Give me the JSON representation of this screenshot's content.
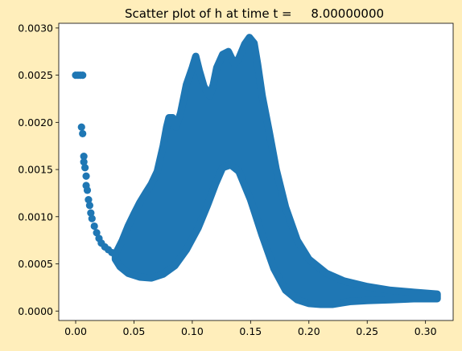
{
  "colors": {
    "figure_background": "#FFEEBB",
    "axes_background": "#FFFFFF",
    "marker": "#1F77B4"
  },
  "chart_data": {
    "type": "scatter",
    "title": "Scatter plot of h at time t =     8.00000000",
    "xlabel": "",
    "ylabel": "",
    "xlim": [
      -0.0145,
      0.3237
    ],
    "ylim": [
      -0.0001,
      0.00305
    ],
    "xticks": [
      {
        "value": 0.0,
        "label": "0.00"
      },
      {
        "value": 0.05,
        "label": "0.05"
      },
      {
        "value": 0.1,
        "label": "0.10"
      },
      {
        "value": 0.15,
        "label": "0.15"
      },
      {
        "value": 0.2,
        "label": "0.20"
      },
      {
        "value": 0.25,
        "label": "0.25"
      },
      {
        "value": 0.3,
        "label": "0.30"
      }
    ],
    "yticks": [
      {
        "value": 0.0,
        "label": "0.0000"
      },
      {
        "value": 0.0005,
        "label": "0.0005"
      },
      {
        "value": 0.001,
        "label": "0.0010"
      },
      {
        "value": 0.0015,
        "label": "0.0015"
      },
      {
        "value": 0.002,
        "label": "0.0020"
      },
      {
        "value": 0.0025,
        "label": "0.0025"
      },
      {
        "value": 0.003,
        "label": "0.0030"
      }
    ],
    "grid": false,
    "legend": "none",
    "points_isolated": [
      {
        "x": 0.0,
        "y": 0.0025
      },
      {
        "x": 0.002,
        "y": 0.0025
      },
      {
        "x": 0.004,
        "y": 0.0025
      },
      {
        "x": 0.006,
        "y": 0.0025
      },
      {
        "x": 0.005,
        "y": 0.00195
      },
      {
        "x": 0.006,
        "y": 0.00188
      },
      {
        "x": 0.007,
        "y": 0.00164
      },
      {
        "x": 0.007,
        "y": 0.00158
      },
      {
        "x": 0.008,
        "y": 0.00152
      },
      {
        "x": 0.009,
        "y": 0.00143
      },
      {
        "x": 0.009,
        "y": 0.00133
      },
      {
        "x": 0.01,
        "y": 0.00128
      },
      {
        "x": 0.011,
        "y": 0.00118
      },
      {
        "x": 0.012,
        "y": 0.00112
      },
      {
        "x": 0.013,
        "y": 0.00104
      },
      {
        "x": 0.014,
        "y": 0.00098
      },
      {
        "x": 0.016,
        "y": 0.0009
      },
      {
        "x": 0.018,
        "y": 0.00083
      },
      {
        "x": 0.02,
        "y": 0.00077
      },
      {
        "x": 0.022,
        "y": 0.00072
      },
      {
        "x": 0.025,
        "y": 0.00068
      },
      {
        "x": 0.028,
        "y": 0.00065
      },
      {
        "x": 0.031,
        "y": 0.00062
      },
      {
        "x": 0.034,
        "y": 0.0006
      }
    ],
    "band_upper": [
      {
        "x": 0.034,
        "y": 0.0006
      },
      {
        "x": 0.04,
        "y": 0.00075
      },
      {
        "x": 0.045,
        "y": 0.0009
      },
      {
        "x": 0.05,
        "y": 0.00103
      },
      {
        "x": 0.055,
        "y": 0.00115
      },
      {
        "x": 0.06,
        "y": 0.00125
      },
      {
        "x": 0.065,
        "y": 0.00135
      },
      {
        "x": 0.07,
        "y": 0.00148
      },
      {
        "x": 0.075,
        "y": 0.00175
      },
      {
        "x": 0.078,
        "y": 0.00195
      },
      {
        "x": 0.08,
        "y": 0.00205
      },
      {
        "x": 0.083,
        "y": 0.00205
      },
      {
        "x": 0.086,
        "y": 0.00195
      },
      {
        "x": 0.09,
        "y": 0.0021
      },
      {
        "x": 0.095,
        "y": 0.0024
      },
      {
        "x": 0.1,
        "y": 0.00258
      },
      {
        "x": 0.103,
        "y": 0.0027
      },
      {
        "x": 0.106,
        "y": 0.00255
      },
      {
        "x": 0.11,
        "y": 0.00238
      },
      {
        "x": 0.115,
        "y": 0.00228
      },
      {
        "x": 0.118,
        "y": 0.0024
      },
      {
        "x": 0.121,
        "y": 0.00258
      },
      {
        "x": 0.126,
        "y": 0.00272
      },
      {
        "x": 0.131,
        "y": 0.00275
      },
      {
        "x": 0.136,
        "y": 0.00262
      },
      {
        "x": 0.14,
        "y": 0.00268
      },
      {
        "x": 0.145,
        "y": 0.00283
      },
      {
        "x": 0.149,
        "y": 0.0029
      },
      {
        "x": 0.153,
        "y": 0.00284
      },
      {
        "x": 0.156,
        "y": 0.00262
      },
      {
        "x": 0.16,
        "y": 0.00228
      },
      {
        "x": 0.166,
        "y": 0.0019
      },
      {
        "x": 0.172,
        "y": 0.0015
      },
      {
        "x": 0.18,
        "y": 0.0011
      },
      {
        "x": 0.19,
        "y": 0.00075
      },
      {
        "x": 0.2,
        "y": 0.00055
      },
      {
        "x": 0.215,
        "y": 0.0004
      },
      {
        "x": 0.23,
        "y": 0.00032
      },
      {
        "x": 0.25,
        "y": 0.00026
      },
      {
        "x": 0.27,
        "y": 0.00022
      },
      {
        "x": 0.29,
        "y": 0.0002
      },
      {
        "x": 0.31,
        "y": 0.00018
      }
    ],
    "band_lower": [
      {
        "x": 0.31,
        "y": 0.00013
      },
      {
        "x": 0.29,
        "y": 0.00013
      },
      {
        "x": 0.27,
        "y": 0.00012
      },
      {
        "x": 0.25,
        "y": 0.00011
      },
      {
        "x": 0.235,
        "y": 0.0001
      },
      {
        "x": 0.22,
        "y": 7e-05
      },
      {
        "x": 0.21,
        "y": 7e-05
      },
      {
        "x": 0.2,
        "y": 8e-05
      },
      {
        "x": 0.19,
        "y": 0.00012
      },
      {
        "x": 0.18,
        "y": 0.00022
      },
      {
        "x": 0.17,
        "y": 0.00045
      },
      {
        "x": 0.16,
        "y": 0.0008
      },
      {
        "x": 0.15,
        "y": 0.00118
      },
      {
        "x": 0.14,
        "y": 0.00148
      },
      {
        "x": 0.133,
        "y": 0.00155
      },
      {
        "x": 0.126,
        "y": 0.00152
      },
      {
        "x": 0.12,
        "y": 0.00135
      },
      {
        "x": 0.113,
        "y": 0.00112
      },
      {
        "x": 0.105,
        "y": 0.00088
      },
      {
        "x": 0.095,
        "y": 0.00065
      },
      {
        "x": 0.085,
        "y": 0.00048
      },
      {
        "x": 0.075,
        "y": 0.00039
      },
      {
        "x": 0.065,
        "y": 0.00035
      },
      {
        "x": 0.055,
        "y": 0.00036
      },
      {
        "x": 0.045,
        "y": 0.0004
      },
      {
        "x": 0.038,
        "y": 0.00047
      },
      {
        "x": 0.034,
        "y": 0.00055
      }
    ]
  }
}
